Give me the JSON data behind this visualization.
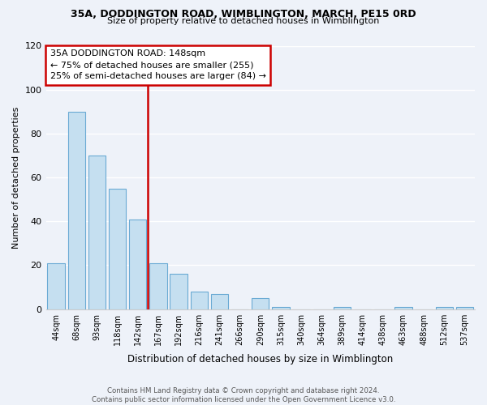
{
  "title": "35A, DODDINGTON ROAD, WIMBLINGTON, MARCH, PE15 0RD",
  "subtitle": "Size of property relative to detached houses in Wimblington",
  "xlabel": "Distribution of detached houses by size in Wimblington",
  "ylabel": "Number of detached properties",
  "bar_labels": [
    "44sqm",
    "68sqm",
    "93sqm",
    "118sqm",
    "142sqm",
    "167sqm",
    "192sqm",
    "216sqm",
    "241sqm",
    "266sqm",
    "290sqm",
    "315sqm",
    "340sqm",
    "364sqm",
    "389sqm",
    "414sqm",
    "438sqm",
    "463sqm",
    "488sqm",
    "512sqm",
    "537sqm"
  ],
  "bar_values": [
    21,
    90,
    70,
    55,
    41,
    21,
    16,
    8,
    7,
    0,
    5,
    1,
    0,
    0,
    1,
    0,
    0,
    1,
    0,
    1,
    1
  ],
  "bar_color": "#c5dff0",
  "bar_edge_color": "#6aaad4",
  "vline_color": "#cc0000",
  "annotation_title": "35A DODDINGTON ROAD: 148sqm",
  "annotation_line1": "← 75% of detached houses are smaller (255)",
  "annotation_line2": "25% of semi-detached houses are larger (84) →",
  "annotation_box_facecolor": "#ffffff",
  "annotation_box_edgecolor": "#cc0000",
  "ylim": [
    0,
    120
  ],
  "yticks": [
    0,
    20,
    40,
    60,
    80,
    100,
    120
  ],
  "footnote1": "Contains HM Land Registry data © Crown copyright and database right 2024.",
  "footnote2": "Contains public sector information licensed under the Open Government Licence v3.0.",
  "bg_color": "#eef2f9",
  "grid_color": "#ffffff"
}
